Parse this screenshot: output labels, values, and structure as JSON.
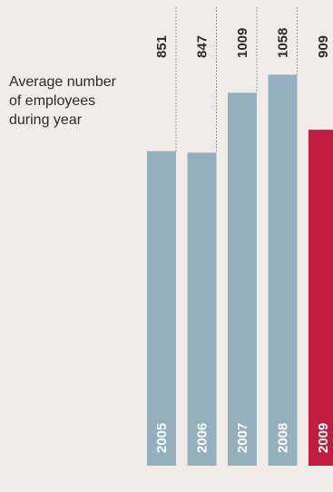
{
  "chart_data": {
    "type": "bar",
    "caption": "Average number\nof employees\nduring year",
    "categories": [
      "2005",
      "2006",
      "2007",
      "2008",
      "2009"
    ],
    "values": [
      851,
      847,
      1009,
      1058,
      909
    ],
    "value_labels": [
      "851",
      "847",
      "1009",
      "1058",
      "909"
    ],
    "highlight_index": 4,
    "ylim": [
      0,
      1260
    ],
    "grid": false,
    "colors": {
      "bar": "#94afbd",
      "highlight": "#c21c3e",
      "leader": "#7f7f7f",
      "background": "#f1ece8"
    }
  }
}
